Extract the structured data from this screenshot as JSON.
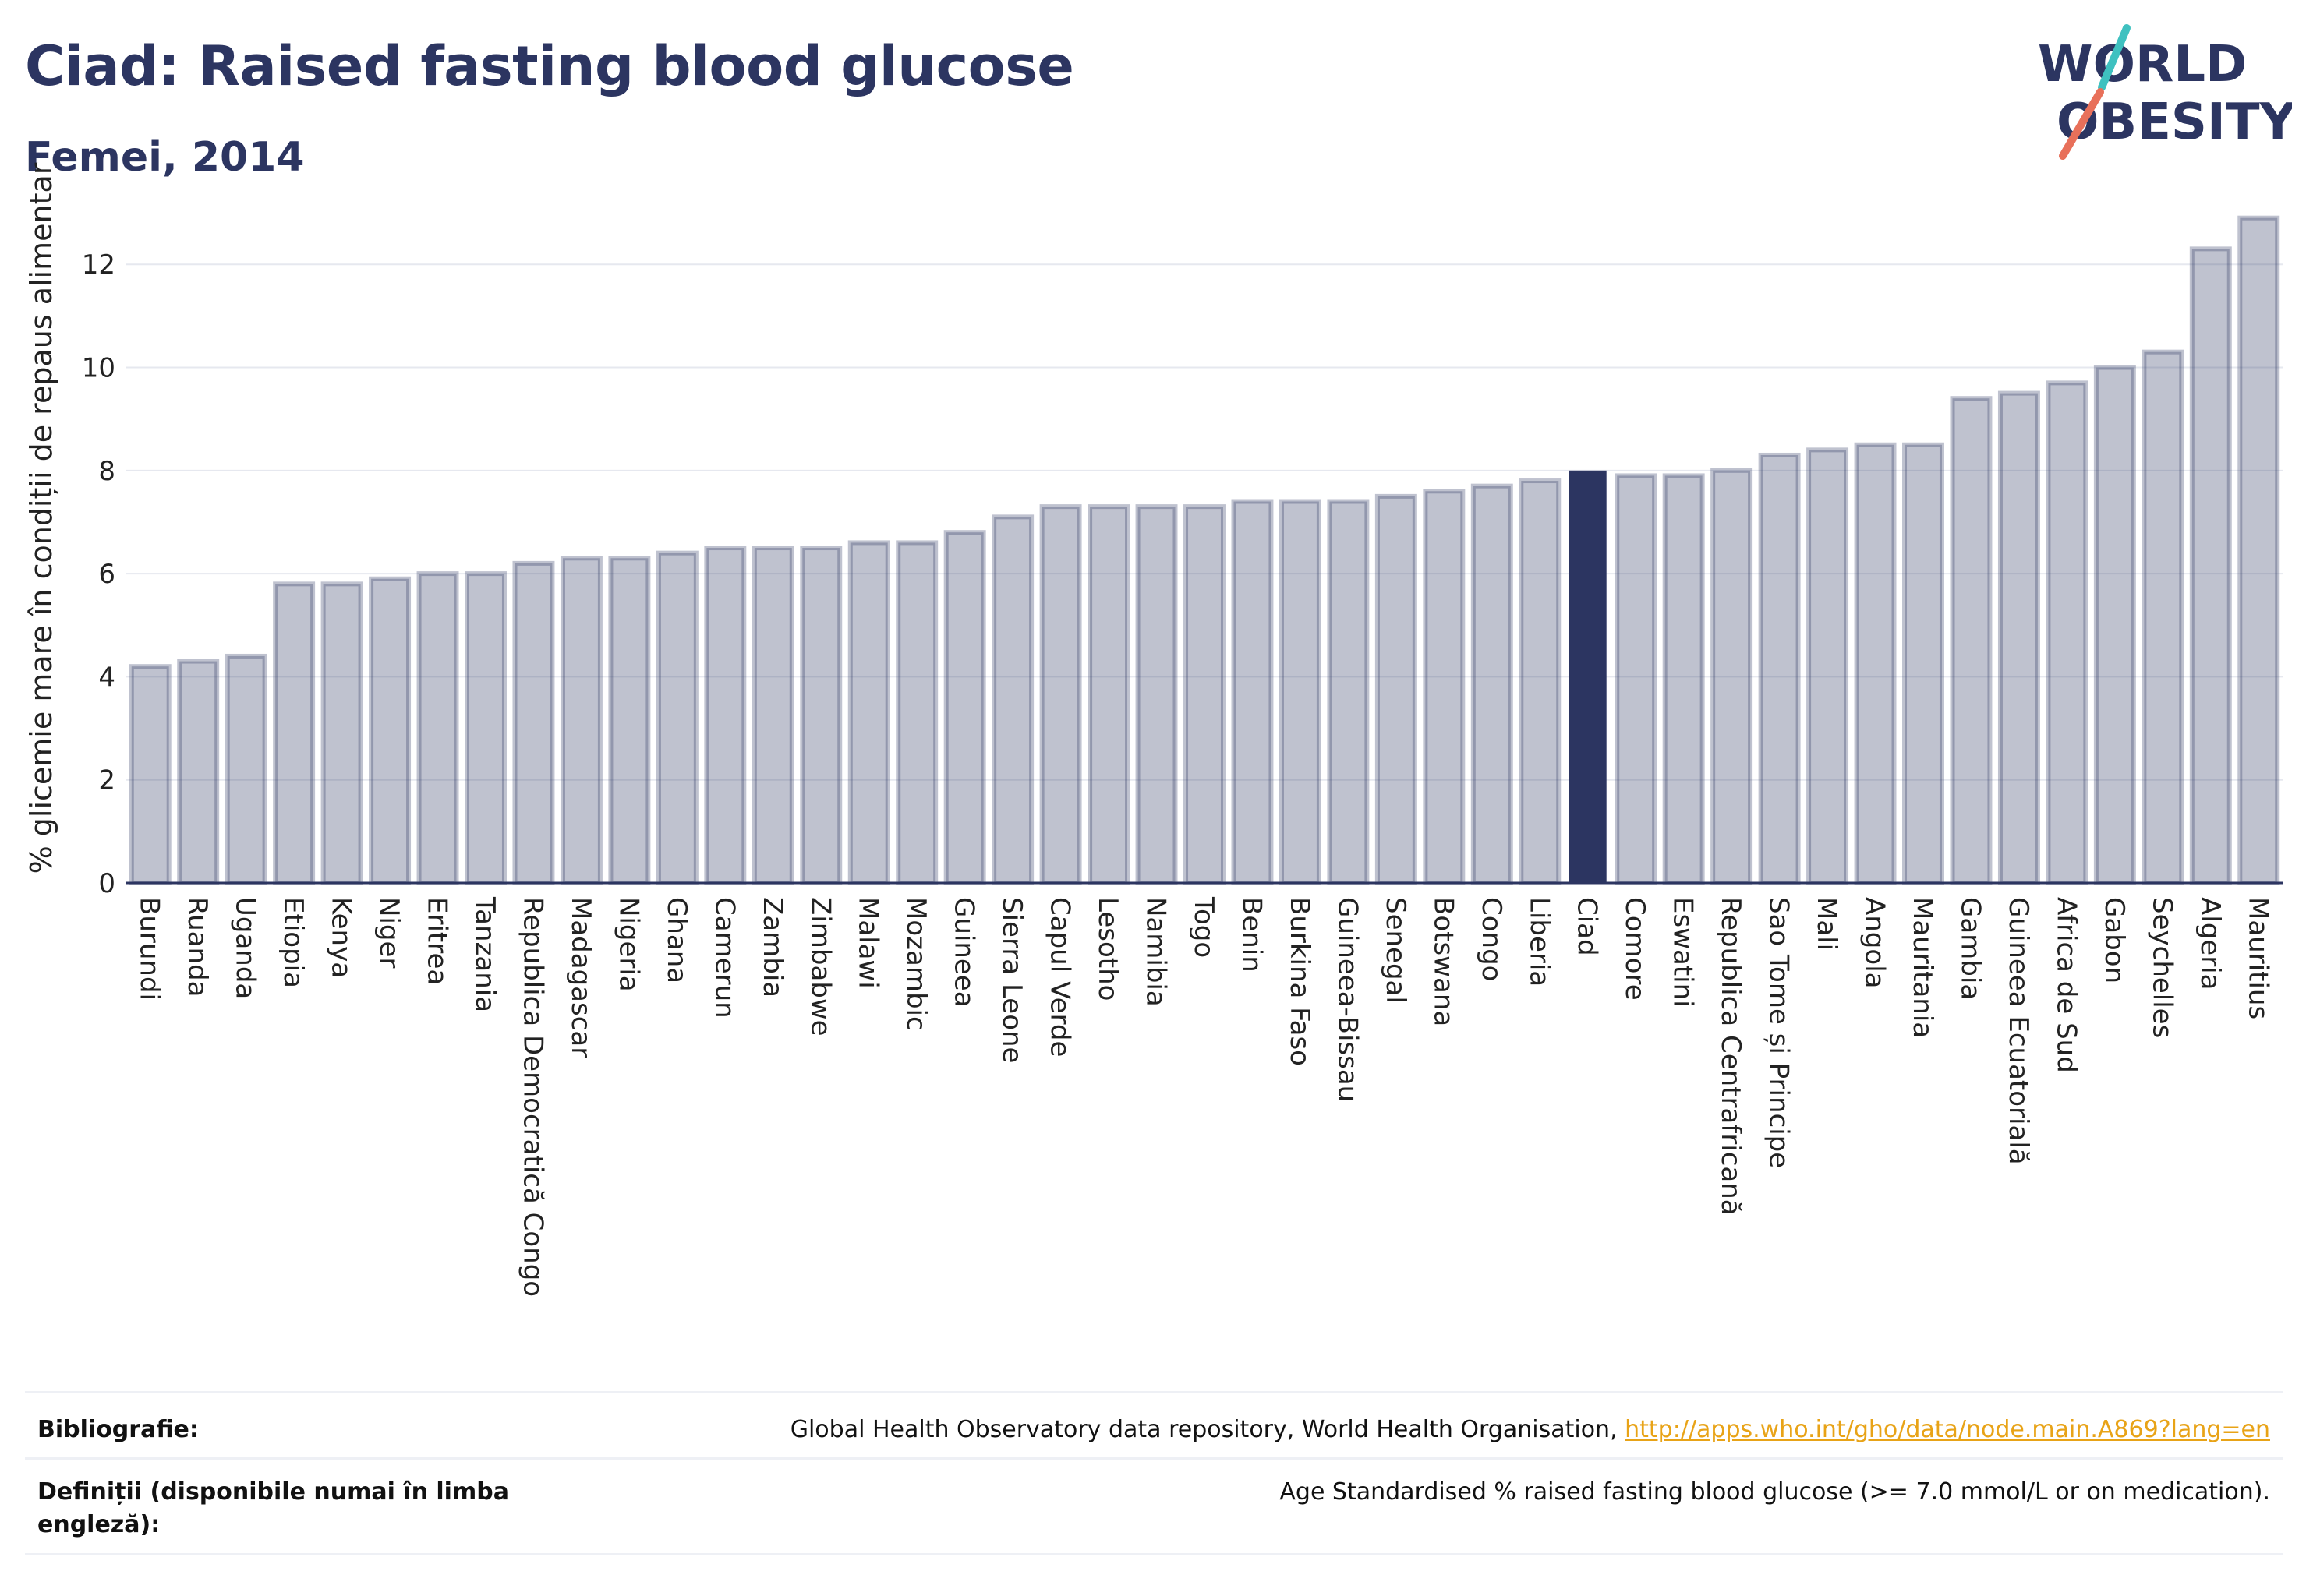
{
  "header": {
    "title": "Ciad: Raised fasting blood glucose",
    "subtitle": "Femei, 2014"
  },
  "logo": {
    "line1": "WORLD",
    "line2": "OBESITY",
    "colors": {
      "text": "#2c3561",
      "slash_top": "#3fc1c0",
      "slash_bottom": "#e8705a"
    }
  },
  "colors": {
    "bar": "#2c3561",
    "bar_fill_opacity": 0.3,
    "highlight": "#2c3561",
    "grid": "#e6e8ef"
  },
  "chart_data": {
    "type": "bar",
    "title": "Ciad: Raised fasting blood glucose",
    "subtitle": "Femei, 2014",
    "xlabel": "",
    "ylabel": "% glicemie mare în condiții de repaus alimentar",
    "ylim": [
      0,
      13.5
    ],
    "yticks": [
      0,
      2,
      4,
      6,
      8,
      10,
      12
    ],
    "grid": true,
    "highlight": "Ciad",
    "categories": [
      "Burundi",
      "Ruanda",
      "Uganda",
      "Etiopia",
      "Kenya",
      "Niger",
      "Eritrea",
      "Tanzania",
      "Republica Democratică Congo",
      "Madagascar",
      "Nigeria",
      "Ghana",
      "Camerun",
      "Zambia",
      "Zimbabwe",
      "Malawi",
      "Mozambic",
      "Guineea",
      "Sierra Leone",
      "Capul Verde",
      "Lesotho",
      "Namibia",
      "Togo",
      "Benin",
      "Burkina Faso",
      "Guineea-Bissau",
      "Senegal",
      "Botswana",
      "Congo",
      "Liberia",
      "Ciad",
      "Comore",
      "Eswatini",
      "Republica Centrafricană",
      "Sao Tome și Principe",
      "Mali",
      "Angola",
      "Mauritania",
      "Gambia",
      "Guineea Ecuatorială",
      "Africa de Sud",
      "Gabon",
      "Seychelles",
      "Algeria",
      "Mauritius"
    ],
    "values": [
      4.2,
      4.3,
      4.4,
      5.8,
      5.8,
      5.9,
      6.0,
      6.0,
      6.2,
      6.3,
      6.3,
      6.4,
      6.5,
      6.5,
      6.5,
      6.6,
      6.6,
      6.8,
      7.1,
      7.3,
      7.3,
      7.3,
      7.3,
      7.4,
      7.4,
      7.4,
      7.5,
      7.6,
      7.7,
      7.8,
      8.0,
      7.9,
      7.9,
      8.0,
      8.3,
      8.4,
      8.5,
      8.5,
      9.4,
      9.5,
      9.7,
      10.0,
      10.3,
      12.3,
      12.9
    ]
  },
  "footer": {
    "bibliography_label": "Bibliografie:",
    "bibliography_text": "Global Health Observatory data repository, World Health Organisation, ",
    "bibliography_link": "http://apps.who.int/gho/data/node.main.A869?lang=en",
    "definitions_label": "Definiții (disponibile numai în limba engleză):",
    "definitions_text": "Age Standardised % raised fasting blood glucose (>= 7.0 mmol/L or on medication)."
  }
}
